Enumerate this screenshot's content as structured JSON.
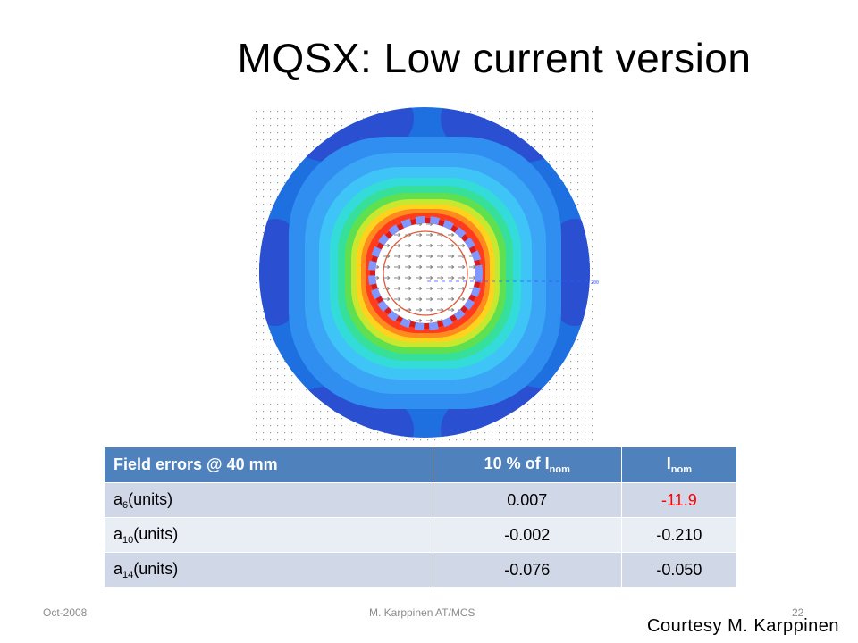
{
  "slide": {
    "title": "MQSX: Low current version"
  },
  "table": {
    "header": {
      "col1": "Field errors @ 40 mm",
      "col2_prefix": "10 % of I",
      "col2_sub": "nom",
      "col3_prefix": "I",
      "col3_sub": "nom"
    },
    "rows": [
      {
        "name_prefix": "a",
        "name_sub": "6",
        "name_suffix": "(units)",
        "v10": "0.007",
        "vnom": "-11.9",
        "vnom_color": "#ff0000"
      },
      {
        "name_prefix": "a",
        "name_sub": "10",
        "name_suffix": "(units)",
        "v10": "-0.002",
        "vnom": "-0.210"
      },
      {
        "name_prefix": "a",
        "name_sub": "14",
        "name_suffix": "(units)",
        "v10": "-0.076",
        "vnom": "-0.050"
      }
    ]
  },
  "footer": {
    "date": "Oct-2008",
    "author": "M. Karppinen AT/MCS",
    "page": "22"
  },
  "courtesy": "Courtesy M. Karppinen",
  "colors": {
    "header_bg": "#4f81bd",
    "row_odd_bg": "#d0d8e8",
    "row_even_bg": "#e9edf4",
    "highlight": "#ff0000"
  },
  "figure": {
    "icon": "field-map-image"
  }
}
